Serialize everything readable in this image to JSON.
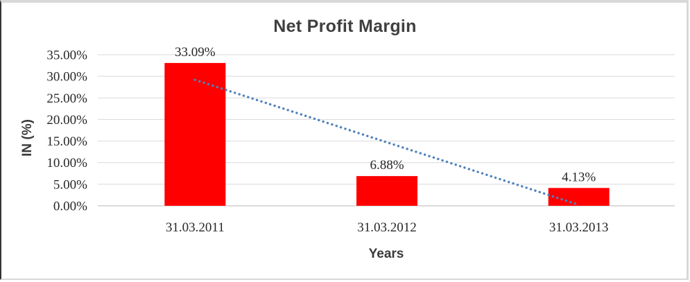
{
  "chart_data": {
    "type": "bar",
    "title": "Net Profit Margin",
    "xlabel": "Years",
    "ylabel": "IN (%)",
    "categories": [
      "31.03.2011",
      "31.03.2012",
      "31.03.2013"
    ],
    "values": [
      33.09,
      6.88,
      4.13
    ],
    "data_labels": [
      "33.09%",
      "6.88%",
      "4.13%"
    ],
    "ylim": [
      0,
      35
    ],
    "ytick_step": 5,
    "yticks": [
      {
        "value": 0,
        "label": "0.00%"
      },
      {
        "value": 5,
        "label": "5.00%"
      },
      {
        "value": 10,
        "label": "10.00%"
      },
      {
        "value": 15,
        "label": "15.00%"
      },
      {
        "value": 20,
        "label": "20.00%"
      },
      {
        "value": 25,
        "label": "25.00%"
      },
      {
        "value": 30,
        "label": "30.00%"
      },
      {
        "value": 35,
        "label": "35.00%"
      }
    ],
    "grid": "horizontal",
    "legend": "none",
    "bar_color": "#FF0000",
    "trendline": {
      "type": "linear",
      "style": "dotted",
      "color": "#4F81BD",
      "endpoint_values": [
        29.18,
        0.22
      ],
      "span_categories": [
        "31.03.2011",
        "31.03.2013"
      ]
    },
    "colors": {
      "title": "#3F3F3F",
      "axis_titles": "#3A3A3A",
      "tick_labels": "#262626",
      "gridlines": "#D9D9D9",
      "axis_line": "#B7B7B7",
      "frame_border": "#D8D8D8",
      "frame_left_border": "#343434"
    }
  }
}
